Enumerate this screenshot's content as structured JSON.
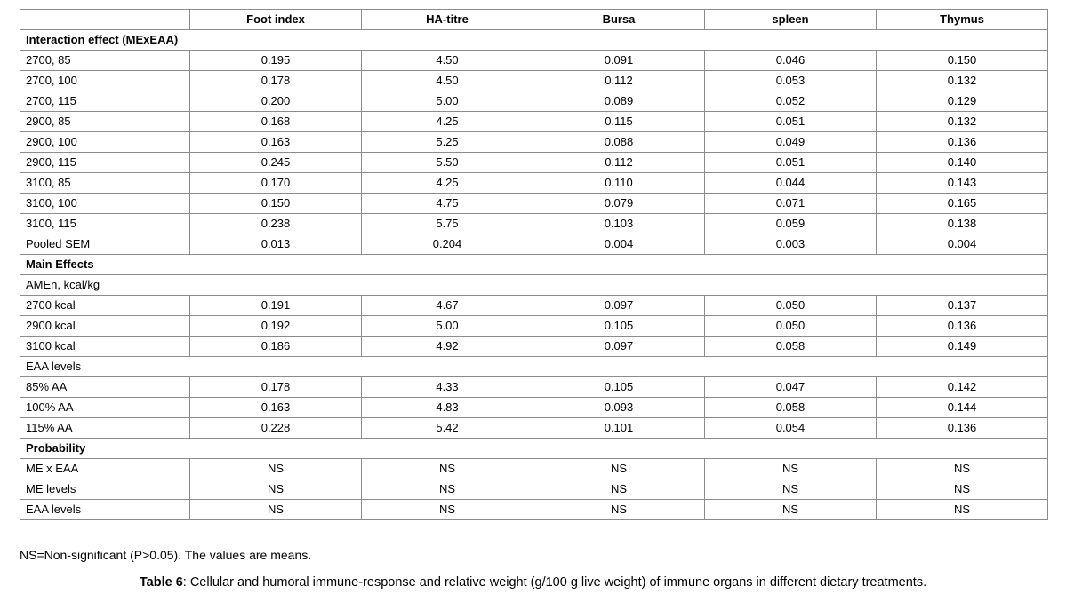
{
  "table": {
    "column_headers": [
      "",
      "Foot index",
      "HA-titre",
      "Bursa",
      "spleen",
      "Thymus"
    ],
    "rows": [
      {
        "type": "section",
        "bold": true,
        "label": "Interaction effect (MExEAA)"
      },
      {
        "type": "data",
        "label": "2700, 85",
        "values": [
          "0.195",
          "4.50",
          "0.091",
          "0.046",
          "0.150"
        ]
      },
      {
        "type": "data",
        "label": "2700, 100",
        "values": [
          "0.178",
          "4.50",
          "0.112",
          "0.053",
          "0.132"
        ]
      },
      {
        "type": "data",
        "label": "2700, 115",
        "values": [
          "0.200",
          "5.00",
          "0.089",
          "0.052",
          "0.129"
        ]
      },
      {
        "type": "data",
        "label": "2900, 85",
        "values": [
          "0.168",
          "4.25",
          "0.115",
          "0.051",
          "0.132"
        ]
      },
      {
        "type": "data",
        "label": "2900, 100",
        "values": [
          "0.163",
          "5.25",
          "0.088",
          "0.049",
          "0.136"
        ]
      },
      {
        "type": "data",
        "label": "2900, 115",
        "values": [
          "0.245",
          "5.50",
          "0.112",
          "0.051",
          "0.140"
        ]
      },
      {
        "type": "data",
        "label": "3100, 85",
        "values": [
          "0.170",
          "4.25",
          "0.110",
          "0.044",
          "0.143"
        ]
      },
      {
        "type": "data",
        "label": "3100, 100",
        "values": [
          "0.150",
          "4.75",
          "0.079",
          "0.071",
          "0.165"
        ]
      },
      {
        "type": "data",
        "label": "3100, 115",
        "values": [
          "0.238",
          "5.75",
          "0.103",
          "0.059",
          "0.138"
        ]
      },
      {
        "type": "data",
        "label": "Pooled SEM",
        "values": [
          "0.013",
          "0.204",
          "0.004",
          "0.003",
          "0.004"
        ]
      },
      {
        "type": "section",
        "bold": true,
        "label": "Main Effects"
      },
      {
        "type": "section",
        "bold": false,
        "label": "AMEn, kcal/kg"
      },
      {
        "type": "data",
        "label": "2700 kcal",
        "values": [
          "0.191",
          "4.67",
          "0.097",
          "0.050",
          "0.137"
        ]
      },
      {
        "type": "data",
        "label": "2900 kcal",
        "values": [
          "0.192",
          "5.00",
          "0.105",
          "0.050",
          "0.136"
        ]
      },
      {
        "type": "data",
        "label": "3100 kcal",
        "values": [
          "0.186",
          "4.92",
          "0.097",
          "0.058",
          "0.149"
        ]
      },
      {
        "type": "section",
        "bold": false,
        "label": "EAA levels"
      },
      {
        "type": "data",
        "label": "85% AA",
        "values": [
          "0.178",
          "4.33",
          "0.105",
          "0.047",
          "0.142"
        ]
      },
      {
        "type": "data",
        "label": "100% AA",
        "values": [
          "0.163",
          "4.83",
          "0.093",
          "0.058",
          "0.144"
        ]
      },
      {
        "type": "data",
        "label": "115% AA",
        "values": [
          "0.228",
          "5.42",
          "0.101",
          "0.054",
          "0.136"
        ]
      },
      {
        "type": "section",
        "bold": true,
        "label": "Probability"
      },
      {
        "type": "data",
        "label": "ME x EAA",
        "values": [
          "NS",
          "NS",
          "NS",
          "NS",
          "NS"
        ]
      },
      {
        "type": "data",
        "label": "ME levels",
        "values": [
          "NS",
          "NS",
          "NS",
          "NS",
          "NS"
        ]
      },
      {
        "type": "data",
        "label": "EAA levels",
        "values": [
          "NS",
          "NS",
          "NS",
          "NS",
          "NS"
        ]
      }
    ]
  },
  "footnote": "NS=Non-significant (P>0.05). The values are means.",
  "caption": {
    "label": "Table 6",
    "text": ": Cellular and humoral immune-response and relative weight (g/100 g live weight) of immune organs in different dietary treatments."
  }
}
